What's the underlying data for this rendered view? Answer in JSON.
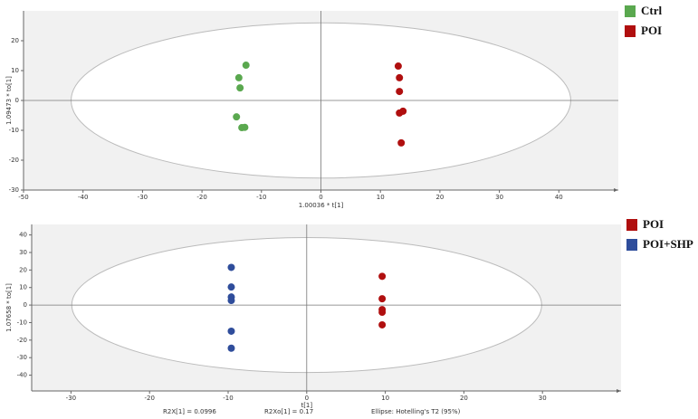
{
  "chart_data": [
    {
      "type": "scatter",
      "xlabel": "1.00036 * t[1]",
      "ylabel": "1.09473 * to[1]",
      "xlim": [
        -50,
        50
      ],
      "ylim": [
        -30,
        30
      ],
      "xticks": [
        -50,
        -40,
        -30,
        -20,
        -10,
        0,
        10,
        20,
        30,
        40
      ],
      "yticks": [
        -30,
        -20,
        -10,
        0,
        10,
        20
      ],
      "ellipse": {
        "rx": 42,
        "ry": 26
      },
      "series": [
        {
          "name": "Ctrl",
          "color": "#5aa84f",
          "x": [
            -12.6,
            -13.8,
            -13.6,
            -14.2,
            -13.3,
            -12.8
          ],
          "values": [
            11.8,
            7.6,
            4.2,
            -5.5,
            -9.1,
            -9.0
          ]
        },
        {
          "name": "POI",
          "color": "#b00f0f",
          "x": [
            13.0,
            13.2,
            13.2,
            13.2,
            13.8,
            13.5
          ],
          "values": [
            11.5,
            7.6,
            3.0,
            -4.2,
            -3.6,
            -14.2
          ]
        }
      ]
    },
    {
      "type": "scatter",
      "xlabel": "t[1]",
      "ylabel": "1.07658 * to[1]",
      "xlim": [
        -35,
        40
      ],
      "ylim": [
        -49,
        46
      ],
      "xticks": [
        -30,
        -20,
        -10,
        0,
        10,
        20,
        30
      ],
      "yticks": [
        -40,
        -30,
        -20,
        -10,
        0,
        10,
        20,
        30,
        40
      ],
      "ellipse": {
        "rx": 29.9,
        "ry": 38.5
      },
      "annotations": [
        "R2X[1] = 0.0996",
        "R2Xo[1] = 0.17",
        "Ellipse: Hotelling's T2 (95%)"
      ],
      "series": [
        {
          "name": "POI",
          "color": "#b00f0f",
          "x": [
            9.6,
            9.6,
            9.6,
            9.6,
            9.6
          ],
          "values": [
            16.4,
            3.6,
            -2.6,
            -4.1,
            -11.3
          ]
        },
        {
          "name": "POI+SHP",
          "color": "#2f4d9b",
          "x": [
            -9.6,
            -9.6,
            -9.6,
            -9.6,
            -9.6,
            -9.6
          ],
          "values": [
            21.5,
            10.3,
            4.6,
            2.6,
            -14.9,
            -24.6
          ]
        }
      ]
    }
  ]
}
